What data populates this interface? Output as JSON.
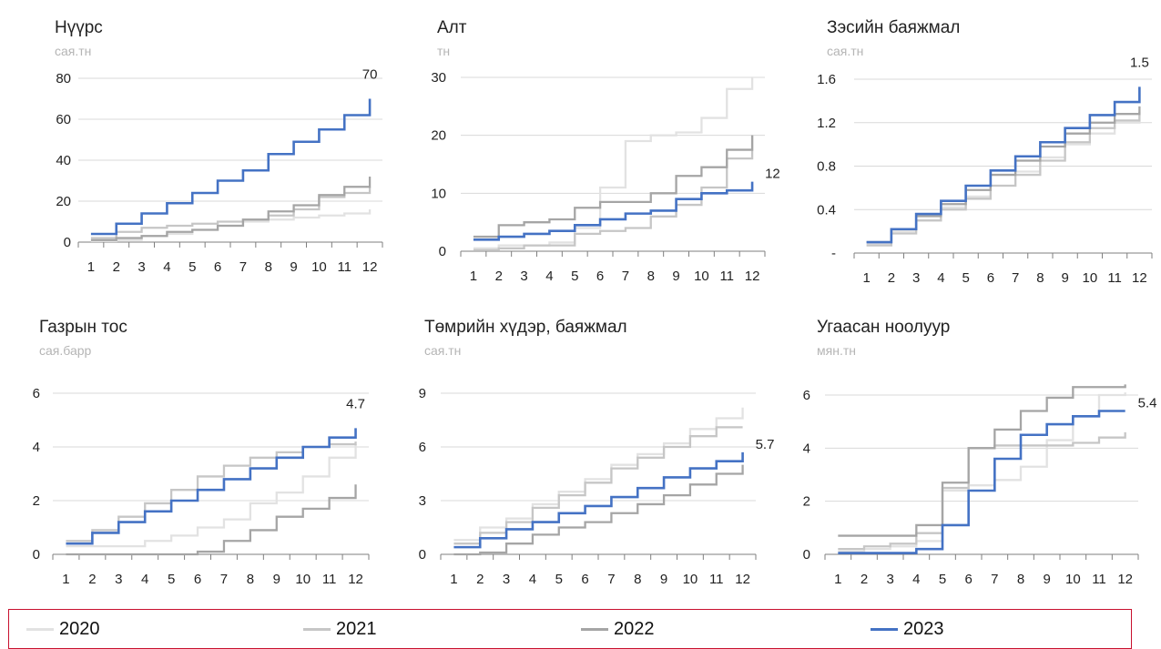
{
  "legend": {
    "items": [
      {
        "label": "2020",
        "color": "#e2e2e2"
      },
      {
        "label": "2021",
        "color": "#c6c6c6"
      },
      {
        "label": "2022",
        "color": "#a5a5a5"
      },
      {
        "label": "2023",
        "color": "#4472c4"
      }
    ]
  },
  "chart_data": [
    {
      "type": "line",
      "step": true,
      "title": "Нүүрс",
      "unit": "сая.тн",
      "x": [
        1,
        2,
        3,
        4,
        5,
        6,
        7,
        8,
        9,
        10,
        11,
        12
      ],
      "ylim": [
        0,
        80
      ],
      "yticks": [
        "0",
        "20",
        "40",
        "60",
        "80"
      ],
      "ytick_values": [
        0,
        20,
        40,
        60,
        80
      ],
      "end_label": "70",
      "series": [
        {
          "name": "2020",
          "values": [
            0.5,
            1,
            3,
            4,
            6,
            8,
            10,
            11,
            12,
            13,
            14,
            16
          ]
        },
        {
          "name": "2021",
          "values": [
            2,
            5,
            7,
            8,
            9,
            10,
            11,
            13,
            16,
            22,
            24,
            27
          ]
        },
        {
          "name": "2022",
          "values": [
            1,
            2,
            3,
            5,
            6,
            8,
            11,
            15,
            18,
            23,
            27,
            32
          ]
        },
        {
          "name": "2023",
          "values": [
            4,
            9,
            14,
            19,
            24,
            30,
            35,
            43,
            49,
            55,
            62,
            70
          ]
        }
      ]
    },
    {
      "type": "line",
      "step": true,
      "title": "Алт",
      "unit": "тн",
      "x": [
        1,
        2,
        3,
        4,
        5,
        6,
        7,
        8,
        9,
        10,
        11,
        12
      ],
      "ylim": [
        0,
        30
      ],
      "yticks": [
        "0",
        "10",
        "20",
        "30"
      ],
      "ytick_values": [
        0,
        10,
        20,
        30
      ],
      "end_label": "12",
      "series": [
        {
          "name": "2020",
          "values": [
            0.5,
            1,
            1,
            1.5,
            4,
            11,
            19,
            20,
            20.5,
            23,
            28,
            30
          ]
        },
        {
          "name": "2021",
          "values": [
            0.2,
            0.5,
            1,
            1,
            3,
            3.5,
            4,
            6,
            8,
            11,
            16,
            20
          ]
        },
        {
          "name": "2022",
          "values": [
            2.5,
            4.5,
            5,
            5.5,
            7.5,
            8.5,
            8.5,
            10,
            13,
            14.5,
            17.5,
            20
          ]
        },
        {
          "name": "2023",
          "values": [
            2,
            2.5,
            3,
            3.5,
            4.5,
            5.5,
            6.5,
            7,
            9,
            10,
            10.5,
            12
          ]
        }
      ]
    },
    {
      "type": "line",
      "step": true,
      "title": "Зэсийн баяжмал",
      "unit": "сая.тн",
      "x": [
        1,
        2,
        3,
        4,
        5,
        6,
        7,
        8,
        9,
        10,
        11,
        12
      ],
      "ylim": [
        0,
        1.6
      ],
      "yticks": [
        "-",
        "0.4",
        "0.8",
        "1.2",
        "1.6"
      ],
      "ytick_values": [
        0,
        0.4,
        0.8,
        1.2,
        1.6
      ],
      "end_label": "1.5",
      "series": [
        {
          "name": "2020",
          "values": [
            0.08,
            0.2,
            0.3,
            0.42,
            0.52,
            0.62,
            0.75,
            0.88,
            1,
            1.1,
            1.2,
            1.3
          ]
        },
        {
          "name": "2021",
          "values": [
            0.07,
            0.18,
            0.3,
            0.4,
            0.5,
            0.62,
            0.72,
            0.85,
            1.02,
            1.15,
            1.22,
            1.3
          ]
        },
        {
          "name": "2022",
          "values": [
            0.1,
            0.22,
            0.34,
            0.45,
            0.58,
            0.72,
            0.85,
            0.98,
            1.1,
            1.2,
            1.28,
            1.35
          ]
        },
        {
          "name": "2023",
          "values": [
            0.1,
            0.22,
            0.36,
            0.48,
            0.62,
            0.76,
            0.89,
            1.02,
            1.15,
            1.27,
            1.39,
            1.53
          ]
        }
      ]
    },
    {
      "type": "line",
      "step": true,
      "title": "Газрын тос",
      "unit": "сая.барр",
      "x": [
        1,
        2,
        3,
        4,
        5,
        6,
        7,
        8,
        9,
        10,
        11,
        12
      ],
      "ylim": [
        0,
        6
      ],
      "yticks": [
        "0",
        "2",
        "4",
        "6"
      ],
      "ytick_values": [
        0,
        2,
        4,
        6
      ],
      "end_label": "4.7",
      "series": [
        {
          "name": "2020",
          "values": [
            0.3,
            0.3,
            0.3,
            0.5,
            0.7,
            1,
            1.3,
            1.9,
            2.3,
            2.9,
            3.6,
            4.1
          ]
        },
        {
          "name": "2021",
          "values": [
            0.5,
            0.9,
            1.4,
            1.9,
            2.4,
            2.9,
            3.3,
            3.6,
            3.8,
            4,
            4.1,
            4.2
          ]
        },
        {
          "name": "2022",
          "values": [
            0,
            0,
            0,
            0,
            0,
            0.1,
            0.5,
            0.9,
            1.4,
            1.7,
            2.1,
            2.6
          ]
        },
        {
          "name": "2023",
          "values": [
            0.4,
            0.8,
            1.2,
            1.6,
            2,
            2.4,
            2.8,
            3.2,
            3.6,
            4,
            4.35,
            4.7
          ]
        }
      ]
    },
    {
      "type": "line",
      "step": true,
      "title": "Төмрийн хүдэр, баяжмал",
      "unit": "сая.тн",
      "x": [
        1,
        2,
        3,
        4,
        5,
        6,
        7,
        8,
        9,
        10,
        11,
        12
      ],
      "ylim": [
        0,
        9
      ],
      "yticks": [
        "0",
        "3",
        "6",
        "9"
      ],
      "ytick_values": [
        0,
        3,
        6,
        9
      ],
      "end_label": "5.7",
      "series": [
        {
          "name": "2020",
          "values": [
            0.8,
            1.5,
            2,
            2.8,
            3.5,
            4.2,
            5,
            5.6,
            6.2,
            7,
            7.6,
            8.2
          ]
        },
        {
          "name": "2021",
          "values": [
            0.6,
            1.2,
            1.8,
            2.6,
            3.3,
            4,
            4.8,
            5.4,
            6,
            6.6,
            7.1,
            7.1
          ]
        },
        {
          "name": "2022",
          "values": [
            0,
            0.1,
            0.6,
            1.1,
            1.5,
            1.8,
            2.3,
            2.8,
            3.3,
            3.9,
            4.5,
            5
          ]
        },
        {
          "name": "2023",
          "values": [
            0.4,
            0.9,
            1.4,
            1.8,
            2.3,
            2.7,
            3.2,
            3.7,
            4.3,
            4.8,
            5.2,
            5.7
          ]
        }
      ]
    },
    {
      "type": "line",
      "step": true,
      "title": "Угаасан ноолуур",
      "unit": "мян.тн",
      "x": [
        1,
        2,
        3,
        4,
        5,
        6,
        7,
        8,
        9,
        10,
        11,
        12
      ],
      "ylim": [
        0,
        6
      ],
      "yticks": [
        "0",
        "2",
        "4",
        "6"
      ],
      "ytick_values": [
        0,
        2,
        4,
        6
      ],
      "end_label": "5.4",
      "series": [
        {
          "name": "2020",
          "values": [
            0.1,
            0.2,
            0.3,
            0.5,
            2.4,
            2.6,
            2.8,
            3.3,
            4.3,
            5.2,
            6,
            6.1
          ]
        },
        {
          "name": "2021",
          "values": [
            0.2,
            0.3,
            0.4,
            0.8,
            2.5,
            4,
            4.1,
            4.1,
            4.1,
            4.2,
            4.4,
            4.6
          ]
        },
        {
          "name": "2022",
          "values": [
            0.7,
            0.7,
            0.7,
            1.1,
            2.7,
            4,
            4.7,
            5.4,
            5.9,
            6.3,
            6.3,
            6.4
          ]
        },
        {
          "name": "2023",
          "values": [
            0.05,
            0.05,
            0.05,
            0.2,
            1.1,
            2.4,
            3.6,
            4.5,
            4.9,
            5.2,
            5.4,
            5.4
          ]
        }
      ]
    }
  ]
}
